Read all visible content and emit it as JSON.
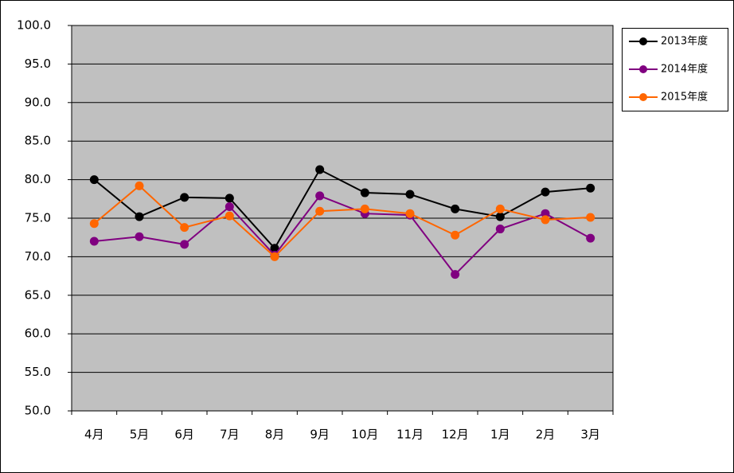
{
  "chart_data": {
    "type": "line",
    "categories": [
      "4月",
      "5月",
      "6月",
      "7月",
      "8月",
      "9月",
      "10月",
      "11月",
      "12月",
      "1月",
      "2月",
      "3月"
    ],
    "series": [
      {
        "name": "2013年度",
        "color": "#000000",
        "values": [
          80.0,
          75.2,
          77.7,
          77.6,
          71.1,
          81.3,
          78.3,
          78.1,
          76.2,
          75.2,
          78.4,
          78.9
        ]
      },
      {
        "name": "2014年度",
        "color": "#800080",
        "values": [
          72.0,
          72.6,
          71.6,
          76.5,
          70.2,
          77.9,
          75.6,
          75.4,
          67.7,
          73.6,
          75.6,
          72.4
        ]
      },
      {
        "name": "2015年度",
        "color": "#ff6600",
        "values": [
          74.3,
          79.2,
          73.8,
          75.3,
          70.0,
          75.9,
          76.2,
          75.6,
          72.8,
          76.2,
          74.8,
          75.1
        ]
      }
    ],
    "ylim": [
      50,
      100
    ],
    "yticks": [
      {
        "value": 50,
        "label": "50.0"
      },
      {
        "value": 55,
        "label": "55.0"
      },
      {
        "value": 60,
        "label": "60.0"
      },
      {
        "value": 65,
        "label": "65.0"
      },
      {
        "value": 70,
        "label": "70.0"
      },
      {
        "value": 75,
        "label": "75.0"
      },
      {
        "value": 80,
        "label": "80.0"
      },
      {
        "value": 85,
        "label": "85.0"
      },
      {
        "value": 90,
        "label": "90.0"
      },
      {
        "value": 95,
        "label": "95.0"
      },
      {
        "value": 100,
        "label": "100.0"
      }
    ],
    "grid": true,
    "legend": "right"
  }
}
